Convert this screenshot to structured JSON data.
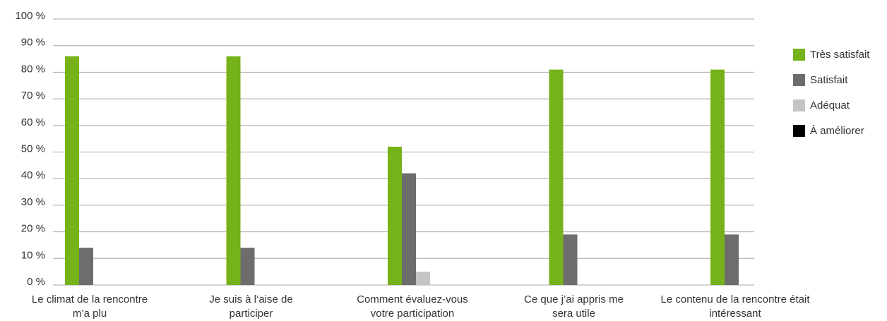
{
  "chart_data": {
    "type": "bar",
    "categories": [
      "Le climat de la rencontre m’a plu",
      "Je suis à l’aise de participer",
      "Comment évaluez-vous votre participation",
      "Ce que j’ai appris me sera utile",
      "Le contenu de la rencontre était intéressant"
    ],
    "series": [
      {
        "name": "Très satisfait",
        "color": "#76b219",
        "values": [
          86,
          86,
          52,
          81,
          81
        ]
      },
      {
        "name": "Satisfait",
        "color": "#6d6d6d",
        "values": [
          14,
          14,
          42,
          19,
          19
        ]
      },
      {
        "name": "Adéquat",
        "color": "#c4c4c4",
        "values": [
          0,
          0,
          5,
          0,
          0
        ]
      },
      {
        "name": "À améliorer",
        "color": "#000000",
        "values": [
          0,
          0,
          0,
          0,
          0
        ]
      }
    ],
    "ylim": [
      0,
      100
    ],
    "yticks": [
      {
        "value": 0,
        "label": "0 %"
      },
      {
        "value": 10,
        "label": "10 %"
      },
      {
        "value": 20,
        "label": "20 %"
      },
      {
        "value": 30,
        "label": "30 %"
      },
      {
        "value": 40,
        "label": "40 %"
      },
      {
        "value": 50,
        "label": "50 %"
      },
      {
        "value": 60,
        "label": "60 %"
      },
      {
        "value": 70,
        "label": "70 %"
      },
      {
        "value": 80,
        "label": "80 %"
      },
      {
        "value": 90,
        "label": "90 %"
      },
      {
        "value": 100,
        "label": "100 %"
      }
    ],
    "grid": true,
    "legend": "right"
  }
}
